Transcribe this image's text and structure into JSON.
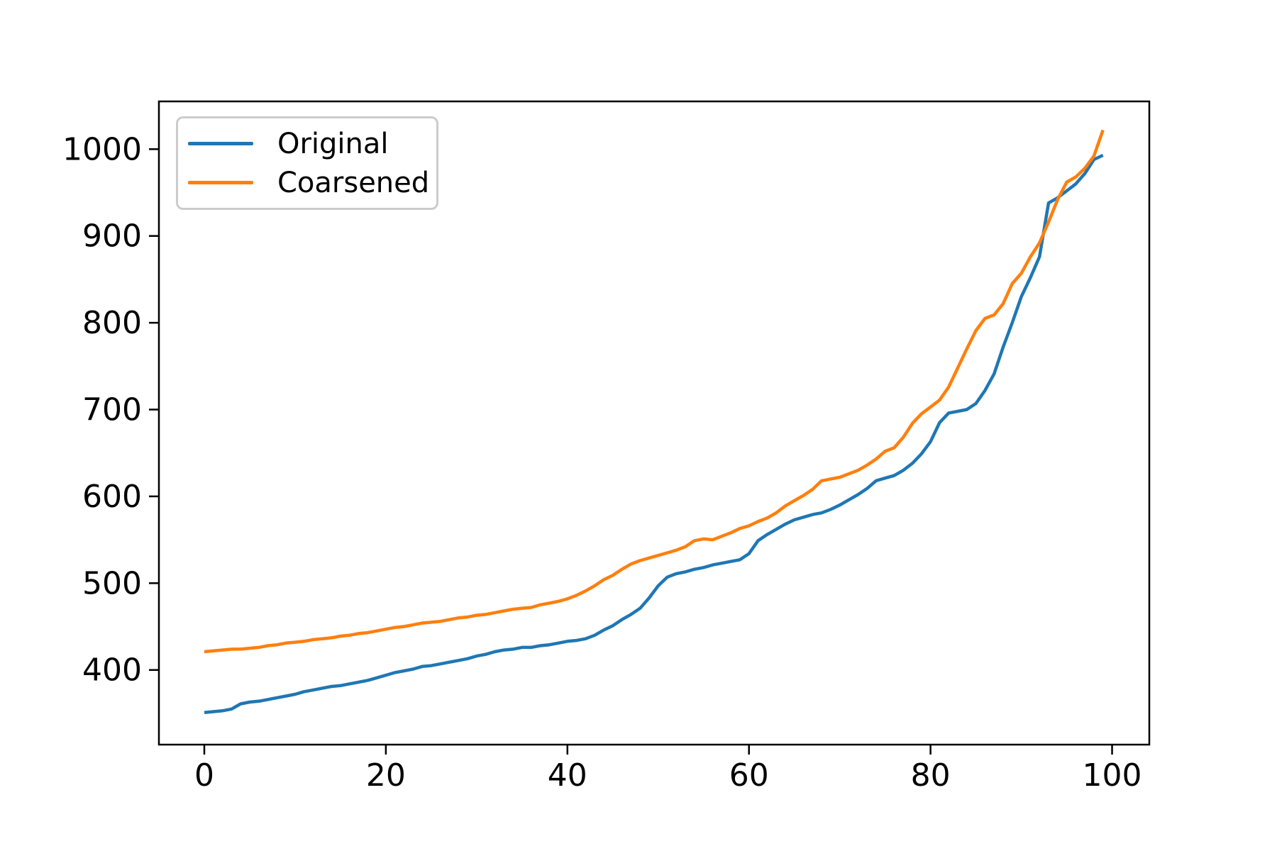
{
  "figure": {
    "background": "#ffffff",
    "spine_color": "#000000",
    "tick_color": "#000000",
    "tick_label_color": "#000000"
  },
  "legend": {
    "position": "upper-left",
    "border_color": "#cccccc",
    "background": "#ffffff"
  },
  "chart_data": {
    "type": "line",
    "title": "",
    "xlabel": "",
    "ylabel": "",
    "grid": false,
    "legend_position": "upper left",
    "xlim": [
      -5.0,
      104.1
    ],
    "ylim": [
      314,
      1055
    ],
    "xticks": [
      0,
      20,
      40,
      60,
      80,
      100
    ],
    "yticks": [
      400,
      500,
      600,
      700,
      800,
      900,
      1000
    ],
    "x": [
      0,
      1,
      2,
      3,
      4,
      5,
      6,
      7,
      8,
      9,
      10,
      11,
      12,
      13,
      14,
      15,
      16,
      17,
      18,
      19,
      20,
      21,
      22,
      23,
      24,
      25,
      26,
      27,
      28,
      29,
      30,
      31,
      32,
      33,
      34,
      35,
      36,
      37,
      38,
      39,
      40,
      41,
      42,
      43,
      44,
      45,
      46,
      47,
      48,
      49,
      50,
      51,
      52,
      53,
      54,
      55,
      56,
      57,
      58,
      59,
      60,
      61,
      62,
      63,
      64,
      65,
      66,
      67,
      68,
      69,
      70,
      71,
      72,
      73,
      74,
      75,
      76,
      77,
      78,
      79,
      80,
      81,
      82,
      83,
      84,
      85,
      86,
      87,
      88,
      89,
      90,
      91,
      92,
      93,
      94,
      95,
      96,
      97,
      98,
      99
    ],
    "series": [
      {
        "name": "Original",
        "color": "#1f77b4",
        "values": [
          351,
          352,
          353,
          355,
          361,
          363,
          364,
          366,
          368,
          370,
          372,
          375,
          377,
          379,
          381,
          382,
          384,
          386,
          388,
          391,
          394,
          397,
          399,
          401,
          404,
          405,
          407,
          409,
          411,
          413,
          416,
          418,
          421,
          423,
          424,
          426,
          426,
          428,
          429,
          431,
          433,
          434,
          436,
          440,
          446,
          451,
          458,
          464,
          471,
          483,
          497,
          507,
          511,
          513,
          516,
          518,
          521,
          523,
          525,
          527,
          534,
          549,
          556,
          562,
          568,
          573,
          576,
          579,
          581,
          585,
          590,
          596,
          602,
          609,
          618,
          621,
          624,
          630,
          638,
          649,
          663,
          685,
          696,
          698,
          700,
          707,
          722,
          741,
          772,
          800,
          830,
          852,
          876,
          938,
          944,
          952,
          960,
          972,
          988,
          993
        ]
      },
      {
        "name": "Coarsened",
        "color": "#ff7f0e",
        "values": [
          421,
          422,
          423,
          424,
          424,
          425,
          426,
          428,
          429,
          431,
          432,
          433,
          435,
          436,
          437,
          439,
          440,
          442,
          443,
          445,
          447,
          449,
          450,
          452,
          454,
          455,
          456,
          458,
          460,
          461,
          463,
          464,
          466,
          468,
          470,
          471,
          472,
          475,
          477,
          479,
          482,
          486,
          491,
          497,
          504,
          509,
          516,
          522,
          526,
          529,
          532,
          535,
          538,
          542,
          549,
          551,
          550,
          554,
          558,
          563,
          566,
          571,
          575,
          581,
          589,
          595,
          601,
          608,
          618,
          620,
          622,
          626,
          630,
          636,
          643,
          652,
          656,
          668,
          684,
          695,
          703,
          711,
          726,
          748,
          770,
          791,
          805,
          809,
          822,
          845,
          857,
          876,
          892,
          916,
          942,
          962,
          968,
          978,
          992,
          1022
        ]
      }
    ]
  }
}
